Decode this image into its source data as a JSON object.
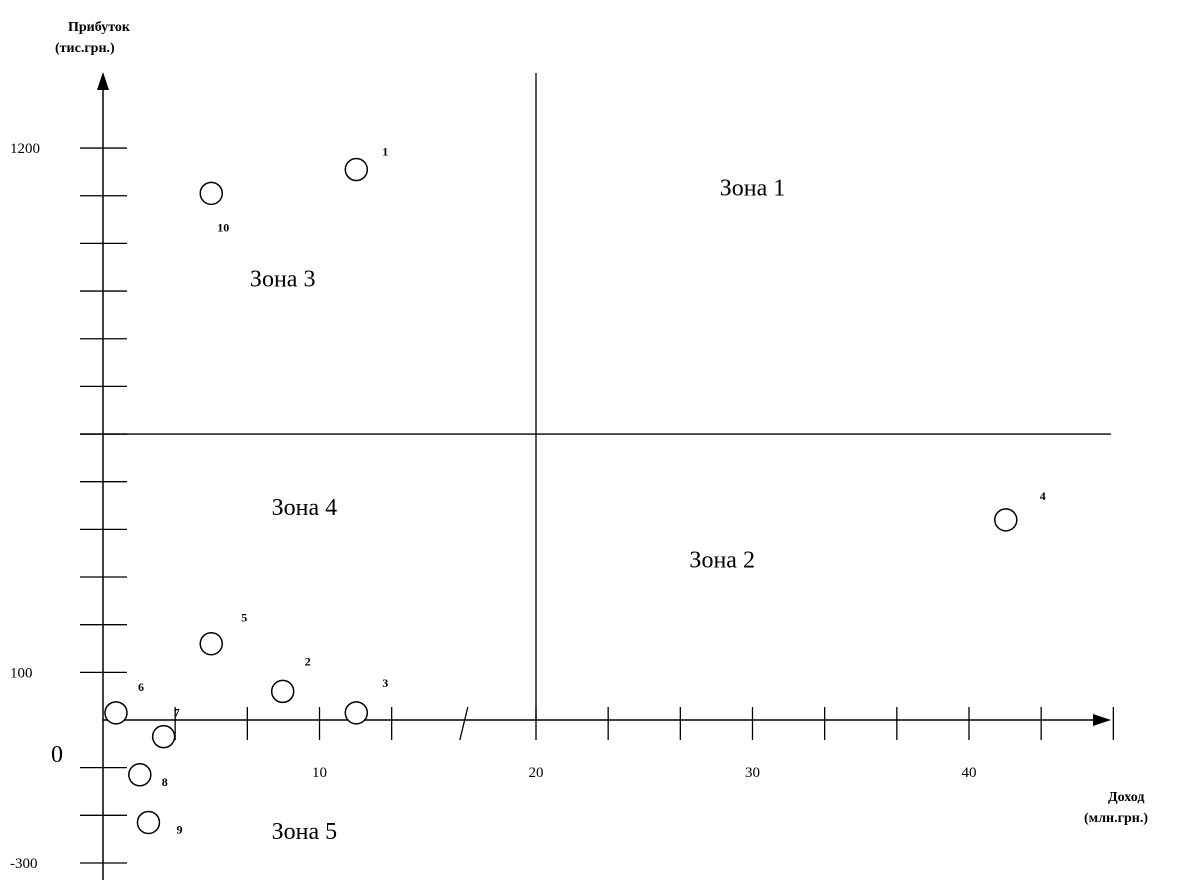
{
  "chart_data": {
    "type": "scatter",
    "title": "",
    "xlabel_lines": [
      "Доход",
      "(млн.грн.)"
    ],
    "ylabel_lines": [
      "Прибуток",
      "(тис.грн.)"
    ],
    "x_tick_labels": [
      {
        "value": 10,
        "label": "10"
      },
      {
        "value": 20,
        "label": "20"
      },
      {
        "value": 30,
        "label": "30"
      },
      {
        "value": 40,
        "label": "40"
      }
    ],
    "y_tick_labels": [
      {
        "value": 1200,
        "label": "1200"
      },
      {
        "value": 100,
        "label": "100"
      },
      {
        "value": -300,
        "label": "-300"
      }
    ],
    "origin_label": "0",
    "xlim": [
      0,
      47
    ],
    "ylim": [
      -300,
      1200
    ],
    "divider_x": 20,
    "divider_y": 600,
    "zones": [
      {
        "label": "Зона 1",
        "x": 30,
        "y": 1100
      },
      {
        "label": "Зона 3",
        "x": 8.3,
        "y": 910
      },
      {
        "label": "Зона 4",
        "x": 9.3,
        "y": 430
      },
      {
        "label": "Зона 2",
        "x": 28.6,
        "y": 320
      },
      {
        "label": "Зона 5",
        "x": 9.3,
        "y": -250
      }
    ],
    "points": [
      {
        "label": "1",
        "x": 11.7,
        "y": 1155
      },
      {
        "label": "10",
        "x": 5.0,
        "y": 1105
      },
      {
        "label": "4",
        "x": 41.7,
        "y": 420
      },
      {
        "label": "5",
        "x": 5.0,
        "y": 160
      },
      {
        "label": "2",
        "x": 8.3,
        "y": 60
      },
      {
        "label": "3",
        "x": 11.7,
        "y": 15
      },
      {
        "label": "6",
        "x": 0.6,
        "y": 15
      },
      {
        "label": "7",
        "x": 2.8,
        "y": -35
      },
      {
        "label": "8",
        "x": 1.7,
        "y": -115
      },
      {
        "label": "9",
        "x": 2.1,
        "y": -215
      }
    ]
  }
}
